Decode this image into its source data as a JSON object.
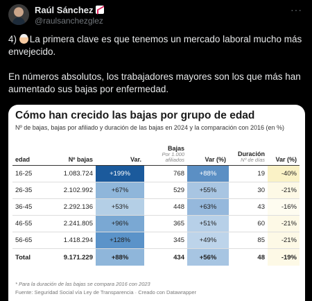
{
  "tweet": {
    "user_name": "Raúl Sánchez",
    "handle": "@raulsanchezglez",
    "text1": "4) ",
    "text1b": "La primera clave es que tenemos un mercado laboral mucho más envejecido.",
    "text2": "En números absolutos, los trabajadores mayores son los que más han aumentado sus bajas por enfermedad."
  },
  "card": {
    "title": "Cómo han crecido las bajas por grupo de edad",
    "subtitle": "Nº de bajas, bajas por afiliado y duración de las bajas en 2024 y la comparación con 2016 (en %)",
    "headers": {
      "edad": "edad",
      "nbajas": "Nº bajas",
      "var": "Var.",
      "bajas": "Bajas",
      "bajas_note": "Por 1.000 afiliados",
      "var_pct": "Var (%)",
      "duracion": "Duración",
      "duracion_note": "Nº de días",
      "var_pct2": "Var (%)"
    },
    "rows": [
      {
        "edad": "16-25",
        "nbajas": "1.083.724",
        "var": "+199%",
        "bajas": "768",
        "var2": "+88%",
        "dur": "19",
        "var3": "-40%"
      },
      {
        "edad": "26-35",
        "nbajas": "2.102.992",
        "var": "+67%",
        "bajas": "529",
        "var2": "+55%",
        "dur": "30",
        "var3": "-21%"
      },
      {
        "edad": "36-45",
        "nbajas": "2.292.136",
        "var": "+53%",
        "bajas": "448",
        "var2": "+63%",
        "dur": "43",
        "var3": "-16%"
      },
      {
        "edad": "46-55",
        "nbajas": "2.241.805",
        "var": "+96%",
        "bajas": "365",
        "var2": "+51%",
        "dur": "60",
        "var3": "-21%"
      },
      {
        "edad": "56-65",
        "nbajas": "1.418.294",
        "var": "+128%",
        "bajas": "345",
        "var2": "+49%",
        "dur": "85",
        "var3": "-21%"
      }
    ],
    "total": {
      "edad": "Total",
      "nbajas": "9.171.229",
      "var": "+88%",
      "bajas": "434",
      "var2": "+56%",
      "dur": "48",
      "var3": "-19%"
    },
    "footnote": "* Para la duración de las bajas se compara 2016 con 2023",
    "source": "Fuente: Seguridad Social vía Ley de Transparencia · Creado con Datawrapper",
    "colors": {
      "var_col": [
        "#1b5a9c",
        "#8fb6da",
        "#b4cfe6",
        "#7aa8d3",
        "#5b93c9",
        "#8fb6da"
      ],
      "var2_col": [
        "#5b8fc4",
        "#a8c5e2",
        "#95b8dc",
        "#b7d0e8",
        "#bdd4ea",
        "#a7c5e2"
      ],
      "var3_col": [
        "#faf2c6",
        "#fdf9e6",
        "#fefcf0",
        "#fdf9e6",
        "#fdf9e6",
        "#fdf9e6"
      ]
    }
  }
}
